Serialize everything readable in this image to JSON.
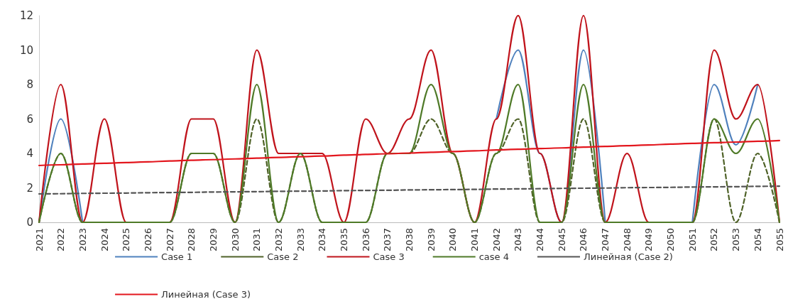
{
  "chart_data": {
    "type": "line",
    "categories": [
      "2021",
      "2022",
      "2023",
      "2024",
      "2025",
      "2026",
      "2027",
      "2028",
      "2029",
      "2030",
      "2031",
      "2032",
      "2033",
      "2034",
      "2035",
      "2036",
      "2037",
      "2038",
      "2039",
      "2040",
      "2041",
      "2042",
      "2043",
      "2044",
      "2045",
      "2046",
      "2047",
      "2048",
      "2049",
      "2050",
      "2051",
      "2052",
      "2053",
      "2054",
      "2055"
    ],
    "series": [
      {
        "name": "Case 1",
        "color": "#4f81bd",
        "line_style": "solid",
        "values": [
          0,
          6,
          0,
          null,
          null,
          null,
          null,
          null,
          null,
          null,
          null,
          null,
          null,
          null,
          null,
          null,
          null,
          null,
          null,
          null,
          null,
          6,
          10,
          4,
          0,
          10,
          0,
          null,
          null,
          null,
          0,
          8,
          4.5,
          8,
          null
        ]
      },
      {
        "name": "Case 2",
        "color": "#4f6228",
        "line_style": "dashed",
        "values": [
          0,
          4,
          0,
          0,
          0,
          0,
          0,
          4,
          4,
          0,
          6,
          0,
          4,
          0,
          0,
          0,
          4,
          4,
          6,
          4,
          0,
          4,
          6,
          0,
          0,
          6,
          0,
          0,
          0,
          0,
          0,
          6,
          0,
          4,
          0
        ]
      },
      {
        "name": "Case 3",
        "color": "#c0141c",
        "line_style": "solid",
        "values": [
          0,
          8,
          0,
          6,
          0,
          0,
          0,
          6,
          6,
          0,
          10,
          4,
          4,
          4,
          0,
          6,
          4,
          6,
          10,
          4,
          0,
          6,
          12,
          4,
          0,
          12,
          0,
          4,
          0,
          0,
          0,
          10,
          6,
          8,
          0
        ]
      },
      {
        "name": "case 4",
        "color": "#4f7a28",
        "line_style": "solid",
        "values": [
          0,
          4,
          0,
          0,
          0,
          0,
          0,
          4,
          4,
          0,
          8,
          0,
          4,
          0,
          0,
          0,
          4,
          4,
          8,
          4,
          0,
          4,
          8,
          0,
          0,
          8,
          0,
          0,
          0,
          0,
          0,
          6,
          4,
          6,
          0
        ]
      },
      {
        "name": "Линейная (Case 2)",
        "color": "#555555",
        "line_style": "dashed",
        "values": [
          1.65,
          1.66,
          1.68,
          1.69,
          1.7,
          1.72,
          1.73,
          1.74,
          1.76,
          1.77,
          1.78,
          1.8,
          1.81,
          1.82,
          1.84,
          1.85,
          1.86,
          1.88,
          1.89,
          1.9,
          1.91,
          1.93,
          1.94,
          1.95,
          1.97,
          1.98,
          1.99,
          2.01,
          2.02,
          2.03,
          2.05,
          2.06,
          2.07,
          2.09,
          2.1
        ]
      },
      {
        "name": "Линейная (Case 3)",
        "color": "#e3171e",
        "line_style": "solid",
        "values": [
          3.3,
          3.34,
          3.39,
          3.43,
          3.47,
          3.51,
          3.56,
          3.6,
          3.64,
          3.68,
          3.73,
          3.77,
          3.81,
          3.85,
          3.9,
          3.94,
          3.98,
          4.02,
          4.07,
          4.11,
          4.15,
          4.2,
          4.24,
          4.28,
          4.32,
          4.37,
          4.41,
          4.45,
          4.49,
          4.54,
          4.58,
          4.62,
          4.66,
          4.71,
          4.75
        ]
      }
    ],
    "ylim": [
      0,
      12
    ],
    "yticks": [
      0,
      2,
      4,
      6,
      8,
      10,
      12
    ],
    "grid": false,
    "legend": "bottom",
    "marker": "none"
  }
}
